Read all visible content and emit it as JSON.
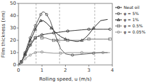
{
  "chart_data": {
    "type": "line",
    "xlabel": "Rolling speed, u (m/s)",
    "ylabel": "Film thickness (nm)",
    "xlim": [
      0,
      4
    ],
    "ylim": [
      0,
      50
    ],
    "xticks": [
      0,
      1,
      2,
      3,
      4
    ],
    "yticks": [
      0,
      10,
      20,
      30,
      40,
      50
    ],
    "vlines": [
      0.75,
      1.75,
      3.25
    ],
    "grid": false,
    "legend": "upper right",
    "series": [
      {
        "name": "Neat oil",
        "color": "#222222",
        "marker": "circle",
        "x": [
          0.02,
          0.05,
          0.08,
          0.12,
          0.17,
          0.22,
          0.28,
          0.35,
          0.42,
          0.5,
          0.58,
          0.65,
          0.72,
          0.8,
          0.9,
          1.0,
          1.15,
          1.3,
          1.5,
          1.7,
          1.9,
          2.1,
          2.4,
          2.7,
          3.0,
          3.3,
          3.6,
          3.9
        ],
        "values": [
          0.3,
          0.8,
          1.5,
          2.5,
          4,
          6,
          8,
          10,
          13,
          16,
          18,
          20,
          22,
          23,
          24,
          24.5,
          25,
          25.5,
          26,
          26.5,
          27,
          27.5,
          28,
          28.5,
          29,
          29,
          29,
          29
        ]
      },
      {
        "name": "φ = 5%",
        "color": "#444444",
        "marker": "circle",
        "x": [
          0.02,
          0.05,
          0.08,
          0.12,
          0.17,
          0.22,
          0.28,
          0.35,
          0.42,
          0.5,
          0.58,
          0.65,
          0.72,
          0.8,
          0.87,
          0.95,
          1.02,
          1.1,
          1.2,
          1.35,
          1.5,
          1.65,
          1.8,
          2.0,
          2.3,
          2.6,
          2.9,
          3.2,
          3.5,
          3.8
        ],
        "values": [
          0.3,
          0.8,
          1.5,
          2.8,
          4.5,
          7,
          10,
          14,
          18,
          22,
          26,
          29,
          32,
          35,
          38,
          41,
          43,
          43,
          41,
          36,
          28,
          20,
          13,
          9,
          8,
          8.5,
          9,
          9.5,
          10,
          10
        ]
      },
      {
        "name": "φ = 1%",
        "color": "#111111",
        "marker": "triangle",
        "x": [
          0.02,
          0.05,
          0.08,
          0.12,
          0.17,
          0.22,
          0.28,
          0.35,
          0.42,
          0.5,
          0.58,
          0.65,
          0.72,
          0.8,
          0.87,
          0.95,
          1.05,
          1.2,
          1.4,
          1.6,
          1.8,
          2.0,
          2.2,
          2.5,
          2.7,
          2.85,
          3.0,
          3.2,
          3.5,
          3.8
        ],
        "values": [
          0.3,
          0.8,
          1.5,
          2.5,
          4,
          6.5,
          9,
          12,
          16,
          20,
          23,
          26,
          29,
          32,
          34,
          36,
          36,
          34,
          30,
          26,
          23,
          21,
          20,
          19,
          20,
          22,
          25,
          30,
          36,
          37
        ]
      },
      {
        "name": "φ = 0.5%",
        "color": "#666666",
        "marker": "square",
        "x": [
          0.02,
          0.05,
          0.08,
          0.12,
          0.17,
          0.22,
          0.28,
          0.35,
          0.42,
          0.5,
          0.58,
          0.65,
          0.72,
          0.8,
          0.9,
          1.0,
          1.15,
          1.3,
          1.5,
          1.7,
          1.9,
          2.1,
          2.4,
          2.7,
          3.0,
          3.3,
          3.6,
          3.9
        ],
        "values": [
          0.3,
          0.8,
          1.5,
          2.5,
          4,
          6,
          8.5,
          11,
          14,
          17,
          19,
          21,
          22,
          23,
          23,
          22,
          22,
          21,
          20,
          20,
          20,
          20,
          20,
          20,
          21,
          21,
          21,
          21
        ]
      },
      {
        "name": "φ = 0.05%",
        "color": "#888888",
        "marker": "circle",
        "x": [
          0.02,
          0.05,
          0.08,
          0.12,
          0.17,
          0.22,
          0.28,
          0.35,
          0.42,
          0.5,
          0.58,
          0.65,
          0.72,
          0.8,
          0.9,
          1.0,
          1.2,
          1.5,
          1.8,
          2.1,
          2.4,
          2.7,
          3.0,
          3.3,
          3.6,
          3.9
        ],
        "values": [
          0.2,
          0.5,
          1,
          1.8,
          2.8,
          3.8,
          5,
          6,
          7,
          8,
          9,
          9.5,
          10,
          10.5,
          10.5,
          10.5,
          10,
          9.5,
          9.5,
          10,
          10,
          10,
          10,
          10,
          10,
          10
        ]
      }
    ]
  }
}
